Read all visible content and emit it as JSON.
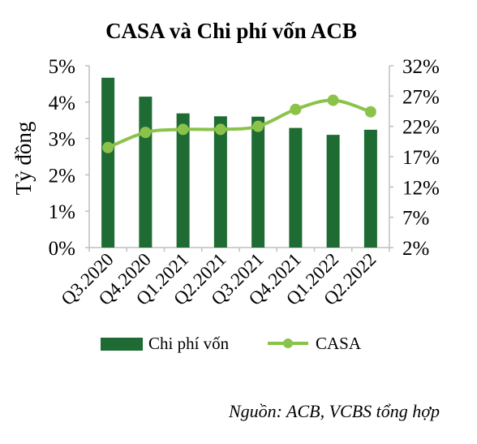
{
  "chart_data": {
    "type": "bar+line",
    "title": "CASA và Chi phí vốn ACB",
    "ylabel": "Tỷ đồng",
    "categories": [
      "Q3.2020",
      "Q4.2020",
      "Q1.2021",
      "Q2.2021",
      "Q3.2021",
      "Q4.2021",
      "Q1.2022",
      "Q2.2022"
    ],
    "y_left": {
      "ticks": [
        "0%",
        "1%",
        "2%",
        "3%",
        "4%",
        "5%"
      ],
      "min": 0,
      "max": 5
    },
    "y_right": {
      "ticks": [
        "2%",
        "7%",
        "12%",
        "17%",
        "22%",
        "27%",
        "32%"
      ],
      "min": 2,
      "max": 32
    },
    "series": [
      {
        "name": "Chi phí vốn",
        "type": "bar",
        "axis": "left",
        "color": "#1e6b34",
        "values": [
          4.67,
          4.15,
          3.69,
          3.61,
          3.6,
          3.29,
          3.1,
          3.24
        ]
      },
      {
        "name": "CASA",
        "type": "line",
        "axis": "right",
        "color": "#8bc34a",
        "values": [
          18.5,
          21.0,
          21.5,
          21.5,
          22.0,
          24.8,
          26.3,
          24.4
        ]
      }
    ],
    "legend_position": "bottom",
    "grid": false
  },
  "source": "Nguồn: ACB, VCBS tổng hợp"
}
